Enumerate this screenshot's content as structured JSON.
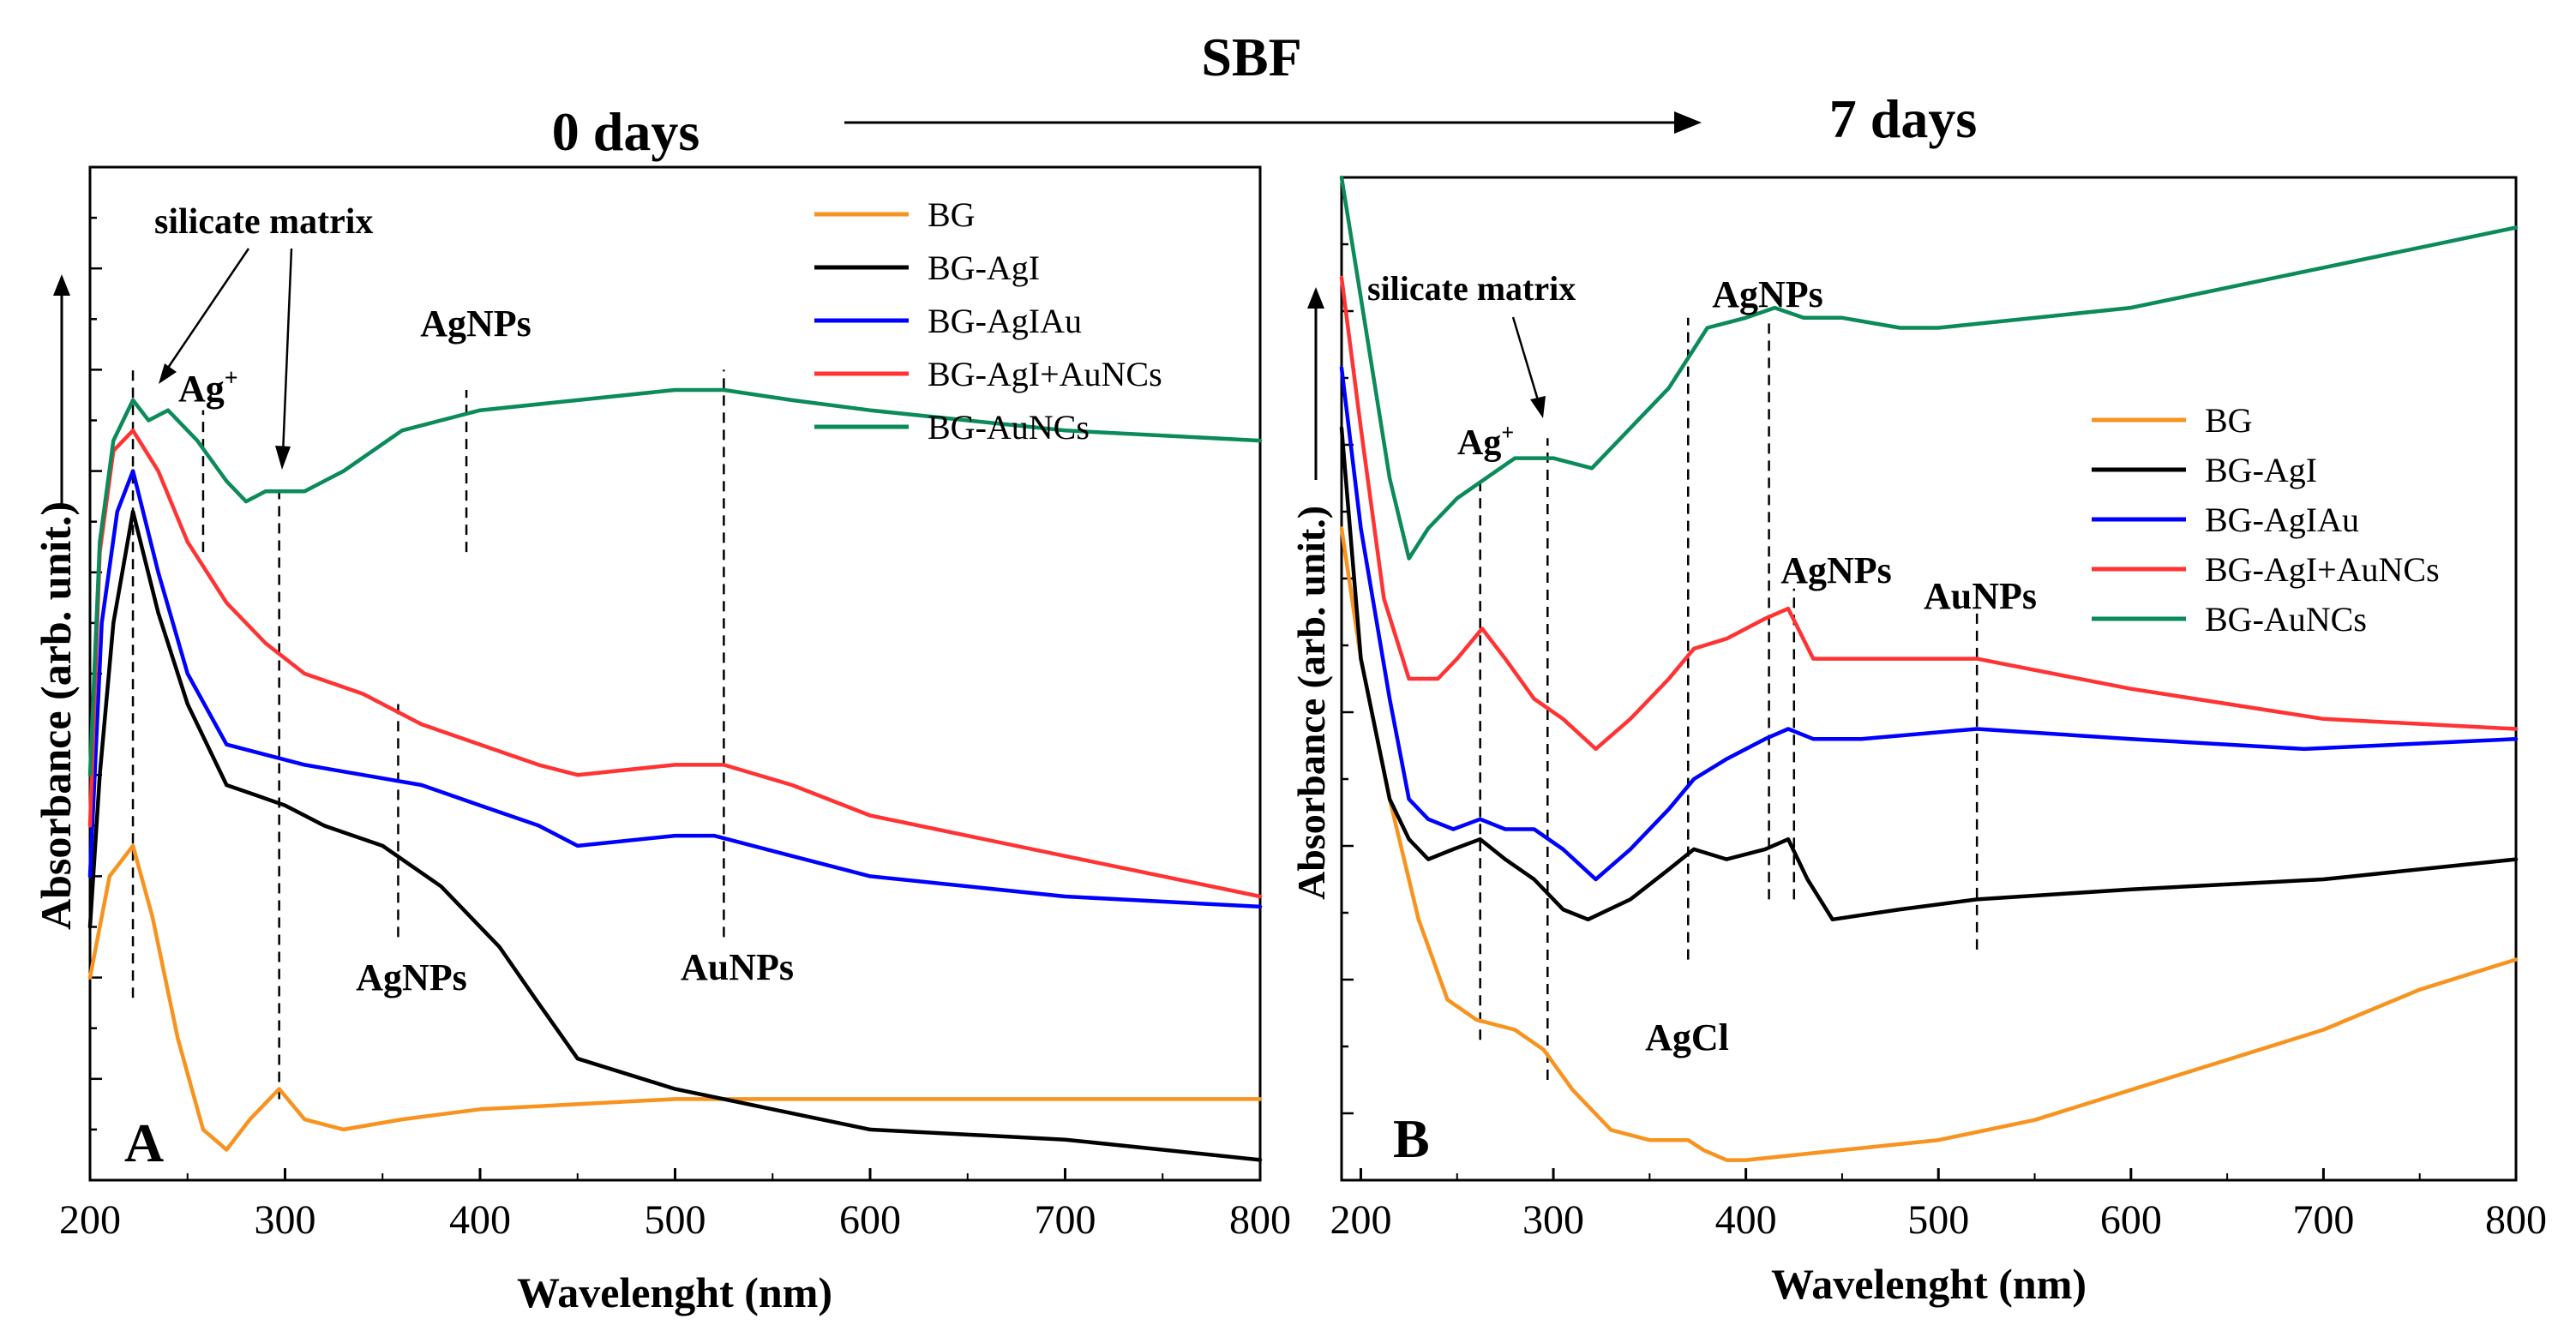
{
  "header": {
    "sbf_label": "SBF",
    "left_label": "0 days",
    "right_label": "7 days"
  },
  "colors": {
    "BG": "#f7931e",
    "BG-AgI": "#000000",
    "BG-AgIAu": "#0000ff",
    "BG-AgI+AuNCs": "#ff3333",
    "BG-AuNCs": "#0b8a5a"
  },
  "chart_data": [
    {
      "type": "line",
      "panel_label": "A",
      "xlabel": "Wavelenght (nm)",
      "ylabel": "Absorbance (arb. unit.)",
      "xlim": [
        200,
        800
      ],
      "ylim": [
        0,
        100
      ],
      "xticks": [
        200,
        300,
        400,
        500,
        600,
        700,
        800
      ],
      "legend_position": "top-right",
      "series": [
        {
          "name": "BG",
          "x": [
            200,
            210,
            222,
            232,
            245,
            258,
            270,
            282,
            297,
            310,
            330,
            360,
            400,
            500,
            600,
            700,
            800
          ],
          "values": [
            20,
            30,
            33,
            26,
            14,
            5,
            3,
            6,
            9,
            6,
            5,
            6,
            7,
            8,
            8,
            8,
            8
          ]
        },
        {
          "name": "BG-AgI",
          "x": [
            200,
            205,
            212,
            222,
            235,
            250,
            270,
            285,
            300,
            320,
            350,
            380,
            410,
            428,
            450,
            500,
            550,
            600,
            700,
            800
          ],
          "values": [
            25,
            40,
            55,
            66,
            56,
            47,
            39,
            38,
            37,
            35,
            33,
            29,
            23,
            18,
            12,
            9,
            7,
            5,
            4,
            2
          ]
        },
        {
          "name": "BG-AgIAu",
          "x": [
            200,
            206,
            214,
            222,
            235,
            250,
            270,
            290,
            310,
            340,
            370,
            400,
            430,
            450,
            500,
            520,
            560,
            600,
            700,
            800
          ],
          "values": [
            30,
            55,
            66,
            70,
            60,
            50,
            43,
            42,
            41,
            40,
            39,
            37,
            35,
            33,
            34,
            34,
            32,
            30,
            28,
            27
          ]
        },
        {
          "name": "BG-AgI+AuNCs",
          "x": [
            200,
            205,
            212,
            222,
            235,
            250,
            270,
            290,
            310,
            340,
            370,
            400,
            430,
            450,
            500,
            525,
            560,
            600,
            700,
            800
          ],
          "values": [
            35,
            62,
            72,
            74,
            70,
            63,
            57,
            53,
            50,
            48,
            45,
            43,
            41,
            40,
            41,
            41,
            39,
            36,
            32,
            28
          ]
        },
        {
          "name": "BG-AuNCs",
          "x": [
            200,
            205,
            212,
            222,
            230,
            240,
            255,
            270,
            280,
            290,
            310,
            330,
            360,
            400,
            450,
            500,
            525,
            560,
            600,
            700,
            800
          ],
          "values": [
            40,
            63,
            73,
            77,
            75,
            76,
            73,
            69,
            67,
            68,
            68,
            70,
            74,
            76,
            77,
            78,
            78,
            77,
            76,
            74,
            73
          ]
        }
      ],
      "annotations": [
        {
          "text": "silicate matrix",
          "x": 225,
          "y": 96
        },
        {
          "text": "Ag",
          "sup": "+",
          "x": 247,
          "y": 80
        },
        {
          "text": "AgNPs",
          "x": 395,
          "y": 87
        },
        {
          "text": "AgNPs",
          "x": 355,
          "y": 17
        },
        {
          "text": "AuNPs",
          "x": 525,
          "y": 18
        }
      ],
      "reference_lines": [
        {
          "x": 222,
          "y_range": [
            18,
            80
          ]
        },
        {
          "x": 258,
          "y_range": [
            62,
            76
          ]
        },
        {
          "x": 297,
          "y_range": [
            8,
            68
          ]
        },
        {
          "x": 358,
          "y_range": [
            24,
            47
          ]
        },
        {
          "x": 393,
          "y_range": [
            62,
            78
          ]
        },
        {
          "x": 525,
          "y_range": [
            24,
            80
          ]
        }
      ]
    },
    {
      "type": "line",
      "panel_label": "B",
      "xlabel": "Wavelenght (nm)",
      "ylabel": "Absorbance (arb. unit.)",
      "xlim": [
        190,
        800
      ],
      "ylim": [
        0,
        100
      ],
      "xticks": [
        200,
        300,
        400,
        500,
        600,
        700,
        800
      ],
      "legend_position": "center-right",
      "series": [
        {
          "name": "BG",
          "x": [
            190,
            200,
            215,
            230,
            245,
            260,
            280,
            295,
            310,
            330,
            350,
            370,
            378,
            390,
            400,
            450,
            500,
            550,
            600,
            650,
            700,
            750,
            800
          ],
          "values": [
            65,
            52,
            38,
            26,
            18,
            16,
            15,
            13,
            9,
            5,
            4,
            4,
            3,
            2,
            2,
            3,
            4,
            6,
            9,
            12,
            15,
            19,
            22
          ]
        },
        {
          "name": "BG-AgI",
          "x": [
            190,
            200,
            215,
            225,
            235,
            248,
            262,
            275,
            290,
            305,
            318,
            340,
            360,
            373,
            390,
            410,
            422,
            432,
            445,
            480,
            520,
            600,
            700,
            800
          ],
          "values": [
            75,
            52,
            38,
            34,
            32,
            33,
            34,
            32,
            30,
            27,
            26,
            28,
            31,
            33,
            32,
            33,
            34,
            30,
            26,
            27,
            28,
            29,
            30,
            32
          ]
        },
        {
          "name": "BG-AgIAu",
          "x": [
            190,
            200,
            215,
            225,
            235,
            248,
            262,
            275,
            290,
            305,
            322,
            340,
            360,
            373,
            390,
            410,
            422,
            435,
            460,
            520,
            600,
            690,
            800
          ],
          "values": [
            81,
            65,
            48,
            38,
            36,
            35,
            36,
            35,
            35,
            33,
            30,
            33,
            37,
            40,
            42,
            44,
            45,
            44,
            44,
            45,
            44,
            43,
            44
          ]
        },
        {
          "name": "BG-AgI+AuNCs",
          "x": [
            190,
            200,
            212,
            225,
            240,
            250,
            263,
            275,
            290,
            305,
            322,
            340,
            360,
            373,
            390,
            410,
            422,
            435,
            460,
            520,
            600,
            700,
            800
          ],
          "values": [
            90,
            75,
            58,
            50,
            50,
            52,
            55,
            52,
            48,
            46,
            43,
            46,
            50,
            53,
            54,
            56,
            57,
            52,
            52,
            52,
            49,
            46,
            45
          ]
        },
        {
          "name": "BG-AuNCs",
          "x": [
            190,
            200,
            215,
            225,
            235,
            250,
            265,
            280,
            300,
            320,
            340,
            360,
            370,
            380,
            400,
            415,
            430,
            450,
            480,
            500,
            600,
            650,
            700,
            750,
            800
          ],
          "values": [
            100,
            88,
            70,
            62,
            65,
            68,
            70,
            72,
            72,
            71,
            75,
            79,
            82,
            85,
            86,
            87,
            86,
            86,
            85,
            85,
            87,
            89,
            91,
            93,
            95
          ]
        }
      ],
      "annotations": [
        {
          "text": "silicate matrix",
          "x": 260,
          "y": 90
        },
        {
          "text": "Ag",
          "sup": "+",
          "x": 258,
          "y": 74
        },
        {
          "text": "AgNPs",
          "x": 405,
          "y": 89
        },
        {
          "text": "AgNPs",
          "x": 420,
          "y": 60
        },
        {
          "text": "AuNPs",
          "x": 510,
          "y": 58
        },
        {
          "text": "AgCl",
          "x": 368,
          "y": 12
        }
      ],
      "reference_lines": [
        {
          "x": 262,
          "y_range": [
            14,
            70
          ]
        },
        {
          "x": 297,
          "y_range": [
            10,
            74
          ]
        },
        {
          "x": 370,
          "y_range": [
            22,
            86
          ]
        },
        {
          "x": 412,
          "y_range": [
            28,
            86
          ]
        },
        {
          "x": 425,
          "y_range": [
            28,
            59
          ]
        },
        {
          "x": 520,
          "y_range": [
            23,
            57
          ]
        }
      ]
    }
  ]
}
